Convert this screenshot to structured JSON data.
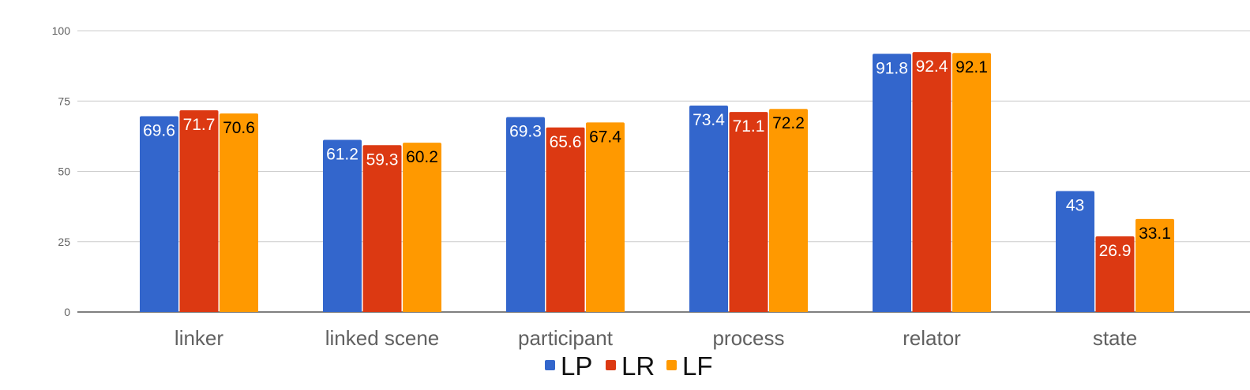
{
  "chart_data": {
    "type": "bar",
    "categories": [
      "linker",
      "linked scene",
      "participant",
      "process",
      "relator",
      "state"
    ],
    "series": [
      {
        "name": "LP",
        "color": "#3366cc",
        "label_color": "#ffffff",
        "values": [
          69.6,
          61.2,
          69.3,
          73.4,
          91.8,
          43
        ]
      },
      {
        "name": "LR",
        "color": "#dc3912",
        "label_color": "#ffffff",
        "values": [
          71.7,
          59.3,
          65.6,
          71.1,
          92.4,
          26.9
        ]
      },
      {
        "name": "LF",
        "color": "#ff9900",
        "label_color": "#000000",
        "values": [
          70.6,
          60.2,
          67.4,
          72.2,
          92.1,
          33.1
        ]
      }
    ],
    "y_ticks": [
      0,
      25,
      50,
      75,
      100
    ],
    "ylim": [
      0,
      100
    ],
    "grid": true,
    "legend_position": "bottom"
  }
}
